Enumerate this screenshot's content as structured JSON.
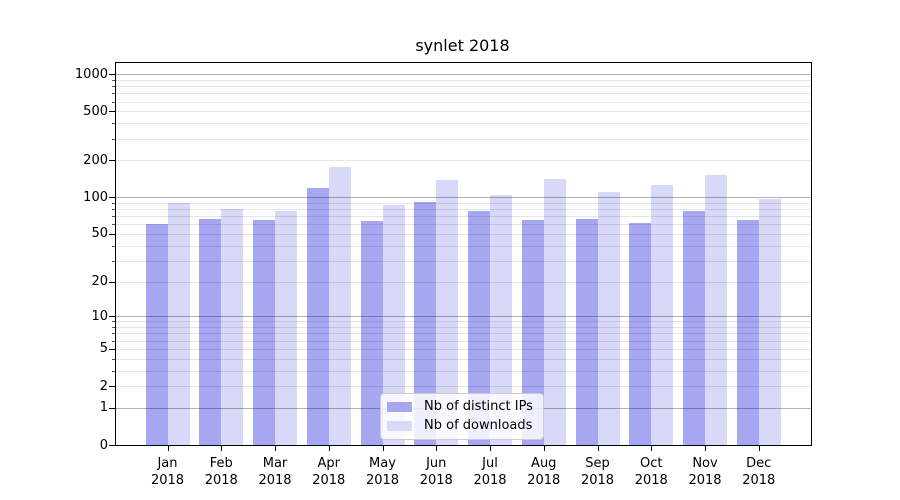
{
  "title": "synlet 2018",
  "colors": {
    "distinct_ips": "#a6a6f1",
    "downloads": "#d8d8f8",
    "grid_major": "#b0b0b0",
    "grid_minor": "#e4e4e4",
    "spine": "#000000",
    "background": "#ffffff",
    "legend_border": "#cccccc"
  },
  "legend": {
    "items": [
      {
        "label": "Nb of distinct IPs"
      },
      {
        "label": "Nb of downloads"
      }
    ]
  },
  "chart_data": {
    "type": "bar",
    "title": "synlet 2018",
    "categories": [
      "Jan",
      "Feb",
      "Mar",
      "Apr",
      "May",
      "Jun",
      "Jul",
      "Aug",
      "Sep",
      "Oct",
      "Nov",
      "Dec"
    ],
    "year": "2018",
    "series": [
      {
        "name": "Nb of distinct IPs",
        "color": "#a6a6f1",
        "values": [
          61,
          66,
          65,
          120,
          64,
          92,
          78,
          65,
          67,
          62,
          77,
          65
        ]
      },
      {
        "name": "Nb of downloads",
        "color": "#d8d8f8",
        "values": [
          90,
          81,
          77,
          177,
          86,
          138,
          104,
          142,
          111,
          127,
          152,
          97
        ]
      }
    ],
    "xlabel": "",
    "ylabel": "",
    "yscale": "log1p",
    "ylim": [
      0,
      1230
    ],
    "y_ticks": [
      0,
      1,
      2,
      5,
      10,
      20,
      50,
      100,
      200,
      500,
      1000
    ],
    "y_major_gridlines": [
      1,
      10,
      100,
      1000
    ],
    "y_minor_gridlines": [
      2,
      3,
      4,
      5,
      6,
      7,
      8,
      9,
      20,
      30,
      40,
      50,
      60,
      70,
      80,
      90,
      200,
      300,
      400,
      500,
      600,
      700,
      800,
      900
    ],
    "grid": true,
    "legend_position": "inside lower center"
  }
}
